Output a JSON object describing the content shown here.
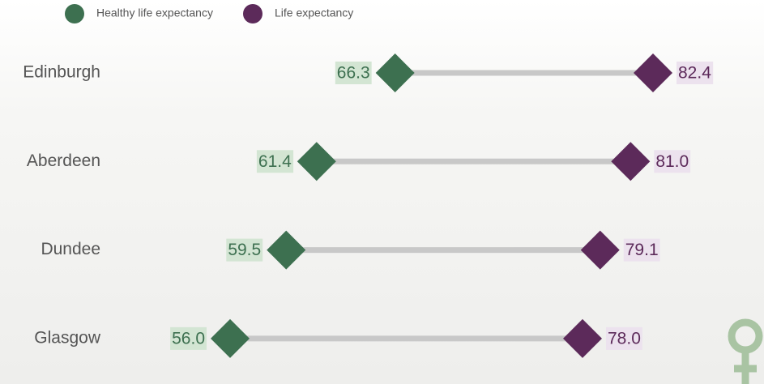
{
  "chart_data": {
    "type": "dumbbell",
    "categories": [
      "Edinburgh",
      "Aberdeen",
      "Dundee",
      "Glasgow"
    ],
    "series": [
      {
        "name": "Healthy life expectancy",
        "color": "#3d7050",
        "values": [
          66.3,
          61.4,
          59.5,
          56.0
        ],
        "value_labels": [
          "66.3",
          "61.4",
          "59.5",
          "56.0"
        ]
      },
      {
        "name": "Life expectancy",
        "color": "#5c2a5a",
        "values": [
          82.4,
          81.0,
          79.1,
          78.0
        ],
        "value_labels": [
          "82.4",
          "81.0",
          "79.1",
          "78.0"
        ]
      }
    ]
  }
}
